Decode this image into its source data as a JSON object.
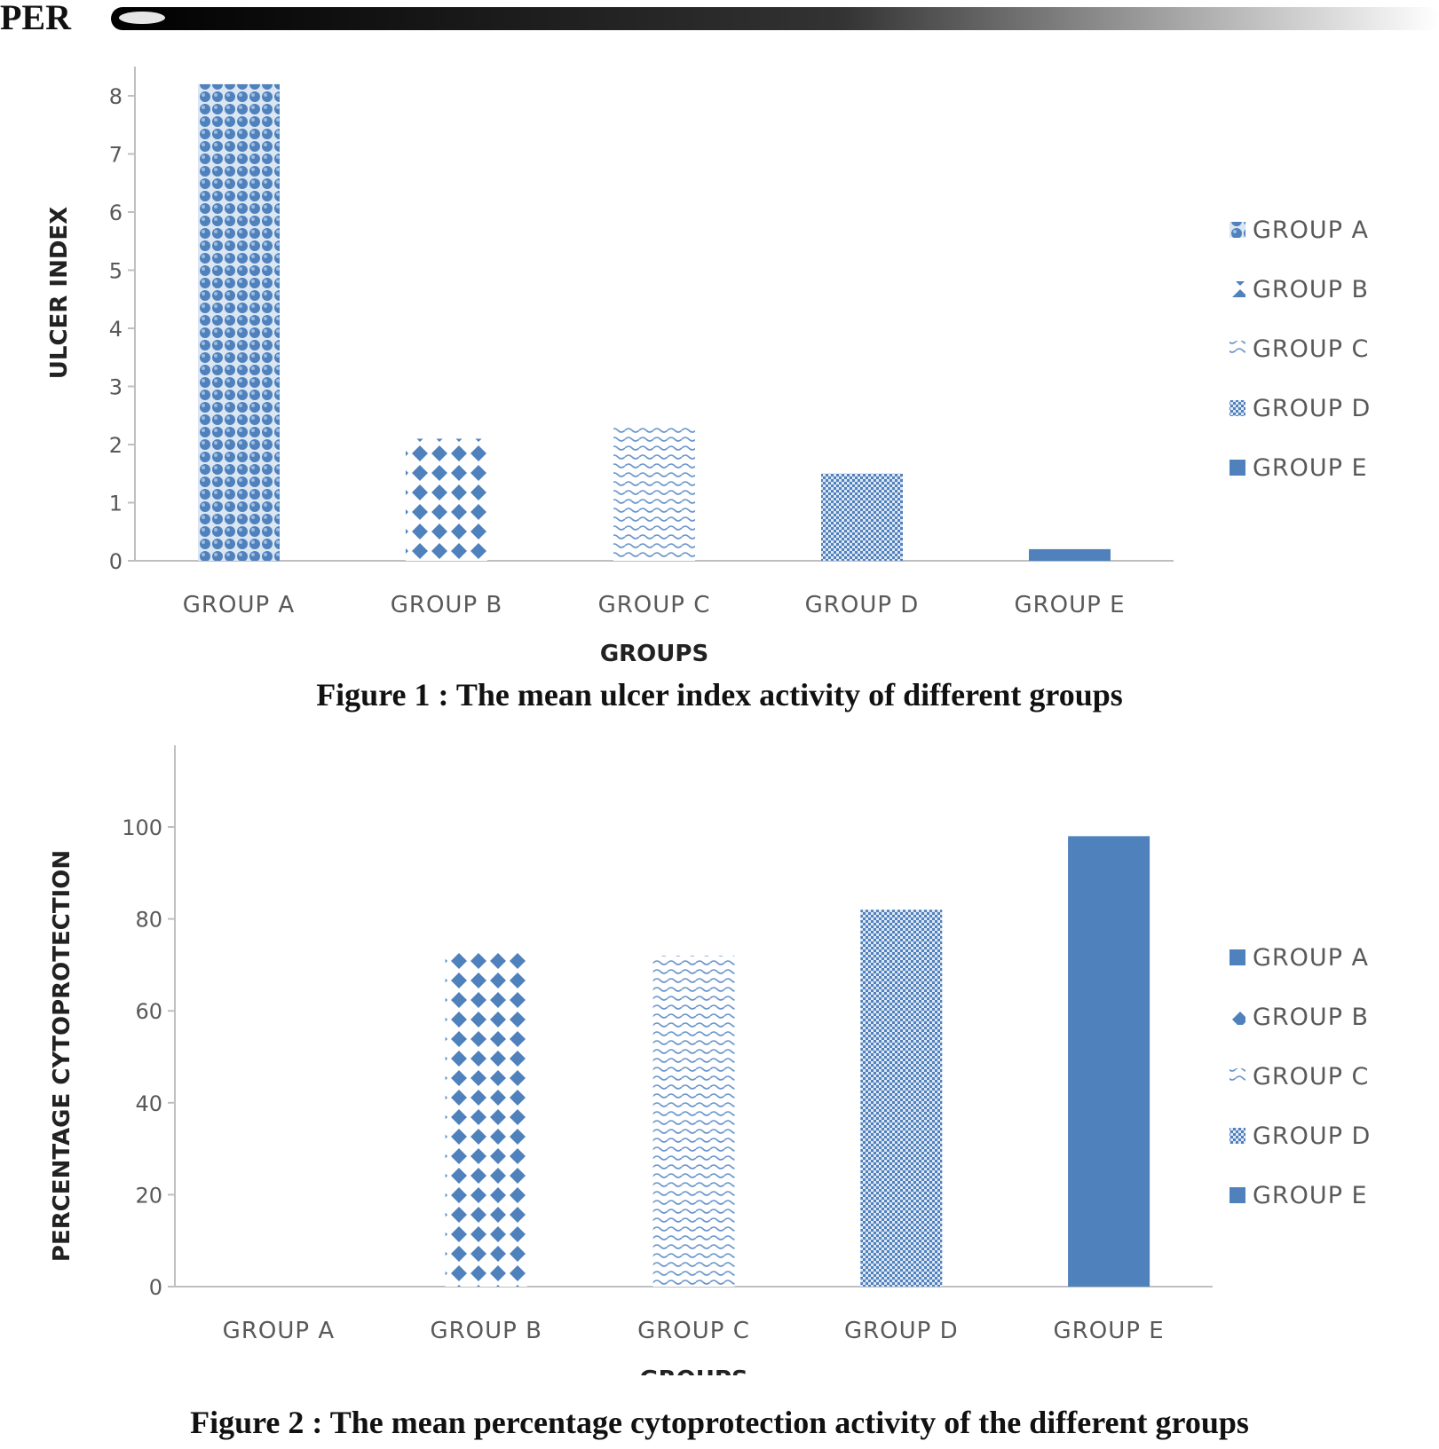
{
  "header": {
    "label": "PER"
  },
  "colors": {
    "bar": "#4f81bd",
    "axis": "#bfbfbf",
    "text": "#595959"
  },
  "chart_data": [
    {
      "type": "bar",
      "categories": [
        "GROUP A",
        "GROUP B",
        "GROUP C",
        "GROUP D",
        "GROUP E"
      ],
      "values": [
        8.2,
        2.1,
        2.3,
        1.5,
        0.2
      ],
      "patterns": [
        "pattern-sphere",
        "pattern-diamond-dots",
        "pattern-wave",
        "pattern-checker",
        "pattern-solid"
      ],
      "ylim": [
        0,
        8
      ],
      "yticks": [
        0,
        1,
        2,
        3,
        4,
        5,
        6,
        7,
        8
      ],
      "ylabel": "ULCER INDEX",
      "xlabel": "GROUPS",
      "legend": [
        "GROUP A",
        "GROUP B",
        "GROUP C",
        "GROUP D",
        "GROUP E"
      ],
      "legend_position": "right",
      "grid": false,
      "caption": "Figure 1 : The mean ulcer index activity of different groups"
    },
    {
      "type": "bar",
      "categories": [
        "GROUP A",
        "GROUP B",
        "GROUP C",
        "GROUP D",
        "GROUP E"
      ],
      "values": [
        0,
        73,
        72,
        82,
        98
      ],
      "patterns": [
        "pattern-solid",
        "pattern-diamond-dots",
        "pattern-wave",
        "pattern-checker",
        "pattern-solid"
      ],
      "ylim": [
        0,
        115
      ],
      "yticks": [
        0,
        20,
        40,
        60,
        80,
        100
      ],
      "ylabel": "PERCENTAGE CYTOPROTECTION",
      "xlabel": "GROUPS",
      "legend": [
        "GROUP A",
        "GROUP B",
        "GROUP C",
        "GROUP D",
        "GROUP E"
      ],
      "legend_position": "right",
      "grid": false,
      "caption": "Figure 2 : The mean percentage cytoprotection activity of the different groups"
    }
  ]
}
